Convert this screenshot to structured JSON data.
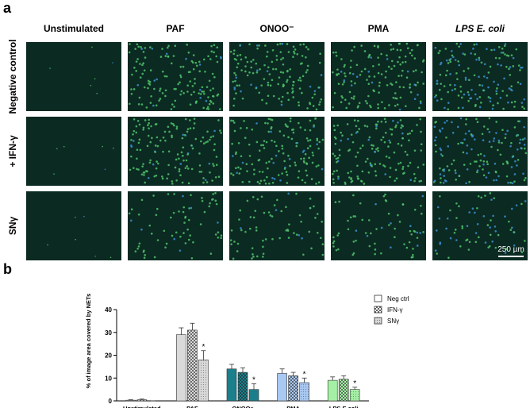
{
  "panel_a": {
    "label": "a",
    "columns": [
      "Unstimulated",
      "PAF",
      "ONOO⁻",
      "PMA",
      "LPS E. coli"
    ],
    "rows": [
      "Negative control",
      "+ IFN-γ",
      "SNγ"
    ],
    "scale_bar": "250 µm"
  },
  "chart_data": {
    "type": "bar",
    "label": "b",
    "y_label": "% of image area covered by NETs",
    "categories": [
      "Unstimulated",
      "PAF",
      "ONOO⁻",
      "PMA",
      "LPS E.coli"
    ],
    "category_colors": [
      "#d9d9d9",
      "#d9d9d9",
      "#1b7f8c",
      "#a9c8f2",
      "#a6f0a6"
    ],
    "series": [
      {
        "name": "Neg ctrl",
        "pattern": "none",
        "values": [
          0.3,
          29,
          14,
          12,
          9
        ],
        "errors": [
          0.2,
          3,
          2,
          2,
          1.5
        ],
        "markers": [
          null,
          null,
          null,
          null,
          null
        ]
      },
      {
        "name": "IFN-γ",
        "pattern": "checker",
        "values": [
          0.5,
          31,
          12.5,
          11,
          9.5
        ],
        "errors": [
          0.3,
          3,
          2,
          1.5,
          1.5
        ],
        "markers": [
          null,
          null,
          null,
          null,
          null
        ]
      },
      {
        "name": "SNγ",
        "pattern": "dots",
        "values": [
          0,
          18,
          5,
          8,
          5
        ],
        "errors": [
          0,
          4,
          2.5,
          2,
          1
        ],
        "markers": [
          null,
          "*",
          "*",
          "*",
          "*"
        ]
      }
    ],
    "ylim": [
      0,
      40
    ],
    "yticks": [
      0,
      10,
      20,
      30,
      40
    ]
  }
}
